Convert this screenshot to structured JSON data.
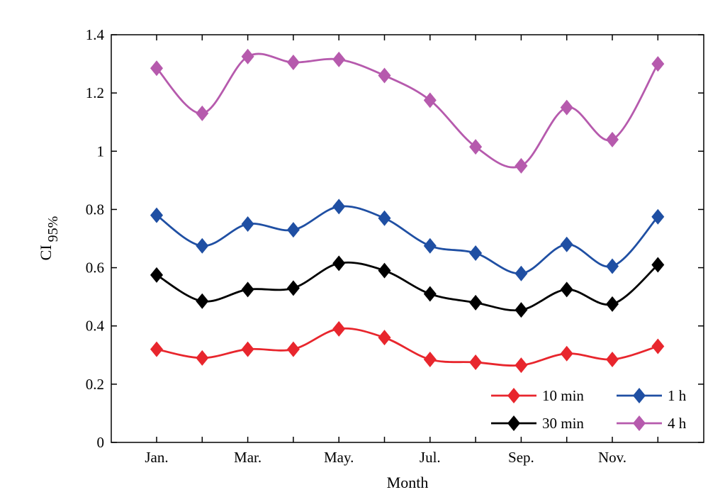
{
  "chart_data": {
    "type": "line",
    "title": "",
    "xlabel": "Month",
    "ylabel": "CI",
    "ylabel_subscript": "95%",
    "x_count": 12,
    "x_ticks": [
      {
        "index": 0,
        "label": "Jan."
      },
      {
        "index": 2,
        "label": "Mar."
      },
      {
        "index": 4,
        "label": "May."
      },
      {
        "index": 6,
        "label": "Jul."
      },
      {
        "index": 8,
        "label": "Sep."
      },
      {
        "index": 10,
        "label": "Nov."
      }
    ],
    "ylim": [
      0,
      1.4
    ],
    "y_ticks": [
      {
        "value": 0,
        "label": "0"
      },
      {
        "value": 0.2,
        "label": "0.2"
      },
      {
        "value": 0.4,
        "label": "0.4"
      },
      {
        "value": 0.6,
        "label": "0.6"
      },
      {
        "value": 0.8,
        "label": "0.8"
      },
      {
        "value": 1.0,
        "label": "1"
      },
      {
        "value": 1.2,
        "label": "1.2"
      },
      {
        "value": 1.4,
        "label": "1.4"
      }
    ],
    "grid": false,
    "legend_position": "bottom-right",
    "series": [
      {
        "name": "10 min",
        "color": "#e8262d",
        "values": [
          0.32,
          0.29,
          0.32,
          0.32,
          0.39,
          0.36,
          0.285,
          0.275,
          0.265,
          0.305,
          0.285,
          0.33
        ]
      },
      {
        "name": "30 min",
        "color": "#000000",
        "values": [
          0.575,
          0.485,
          0.525,
          0.53,
          0.615,
          0.59,
          0.51,
          0.48,
          0.455,
          0.525,
          0.475,
          0.61
        ]
      },
      {
        "name": "1 h",
        "color": "#1f4fa3",
        "values": [
          0.78,
          0.675,
          0.75,
          0.73,
          0.81,
          0.77,
          0.675,
          0.65,
          0.58,
          0.68,
          0.605,
          0.775
        ]
      },
      {
        "name": "4 h",
        "color": "#b65aad",
        "values": [
          1.285,
          1.13,
          1.325,
          1.305,
          1.315,
          1.26,
          1.175,
          1.015,
          0.95,
          1.15,
          1.04,
          1.3
        ]
      }
    ]
  }
}
